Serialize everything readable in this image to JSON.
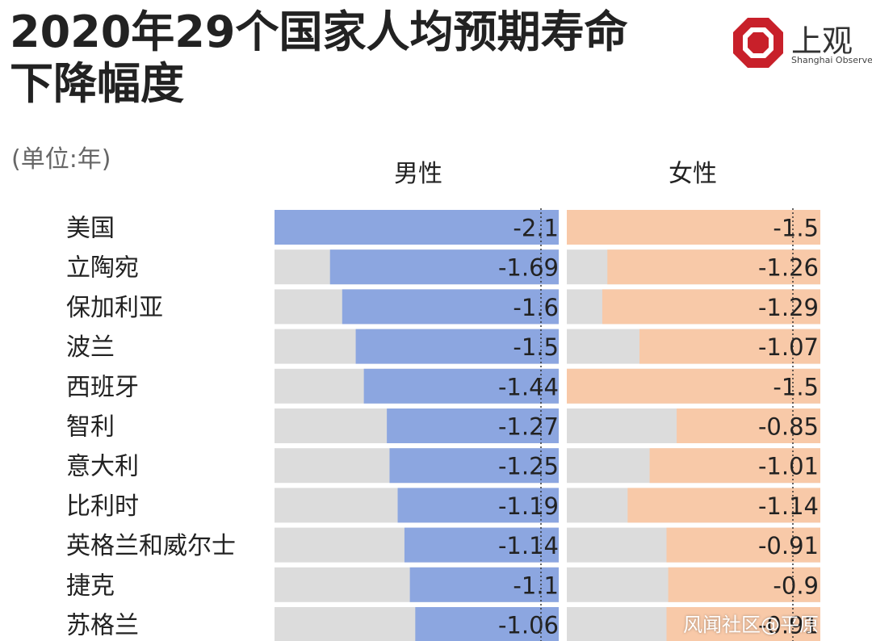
{
  "title_line1": "2020年29个国家人均预期寿命",
  "title_line2": "下降幅度",
  "unit": "(单位:年)",
  "logo": {
    "cn": "上观",
    "en": "Shanghai Observer"
  },
  "columns": {
    "male": "男性",
    "female": "女性"
  },
  "watermark": "风闻社区@平原",
  "colors": {
    "male_bar": "#8CA6E0",
    "female_bar": "#F8C9A8",
    "track": "#DCDCDC",
    "logo_red": "#C8202A"
  },
  "chart_data": {
    "type": "bar",
    "orientation": "horizontal",
    "categories": [
      "美国",
      "立陶宛",
      "保加利亚",
      "波兰",
      "西班牙",
      "智利",
      "意大利",
      "比利时",
      "英格兰和威尔士",
      "捷克",
      "苏格兰"
    ],
    "series": [
      {
        "name": "男性",
        "values": [
          -2.1,
          -1.69,
          -1.6,
          -1.5,
          -1.44,
          -1.27,
          -1.25,
          -1.19,
          -1.14,
          -1.1,
          -1.06
        ],
        "labels": [
          "-2.1",
          "-1.69",
          "-1.6",
          "-1.5",
          "-1.44",
          "-1.27",
          "-1.25",
          "-1.19",
          "-1.14",
          "-1.1",
          "-1.06"
        ]
      },
      {
        "name": "女性",
        "values": [
          -1.5,
          -1.26,
          -1.29,
          -1.07,
          -1.5,
          -0.85,
          -1.01,
          -1.14,
          -0.91,
          -0.9,
          -0.91
        ],
        "labels": [
          "-1.5",
          "-1.26",
          "-1.29",
          "-1.07",
          "-1.5",
          "-0.85",
          "-1.01",
          "-1.14",
          "-0.91",
          "-0.9",
          "-0.91"
        ]
      }
    ],
    "male_scale_max": 2.1,
    "female_scale_max": 1.5
  }
}
